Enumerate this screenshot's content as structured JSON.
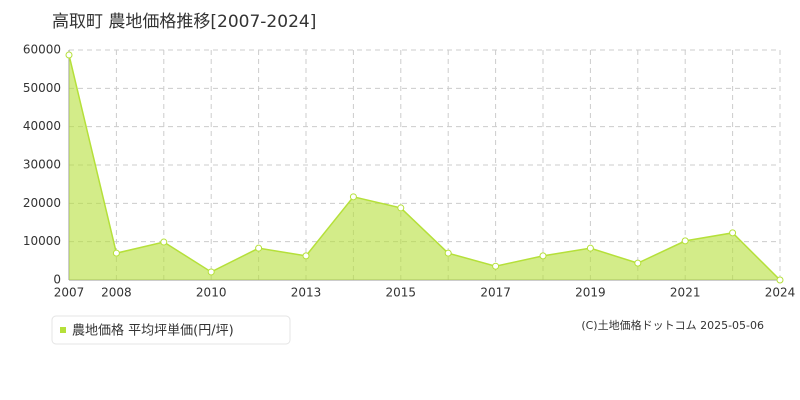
{
  "chart_data": {
    "type": "area",
    "title": "高取町 農地価格推移[2007-2024]",
    "categories": [
      "2007",
      "2008",
      null,
      "2010",
      null,
      "2013",
      null,
      "2015",
      null,
      "2017",
      null,
      "2019",
      null,
      "2021",
      null,
      "2024"
    ],
    "series": [
      {
        "name": "農地価格 平均坪単価(円/坪)",
        "color": "#b5e03a",
        "values": [
          58700,
          7000,
          9900,
          2100,
          8300,
          6300,
          21700,
          18800,
          7000,
          3600,
          6300,
          8300,
          4400,
          10200,
          12300,
          0
        ]
      }
    ],
    "ylim": [
      0,
      60000
    ],
    "yticks": [
      0,
      10000,
      20000,
      30000,
      40000,
      50000,
      60000
    ],
    "grid": true,
    "source": "(C)土地価格ドットコム 2025-05-06"
  }
}
